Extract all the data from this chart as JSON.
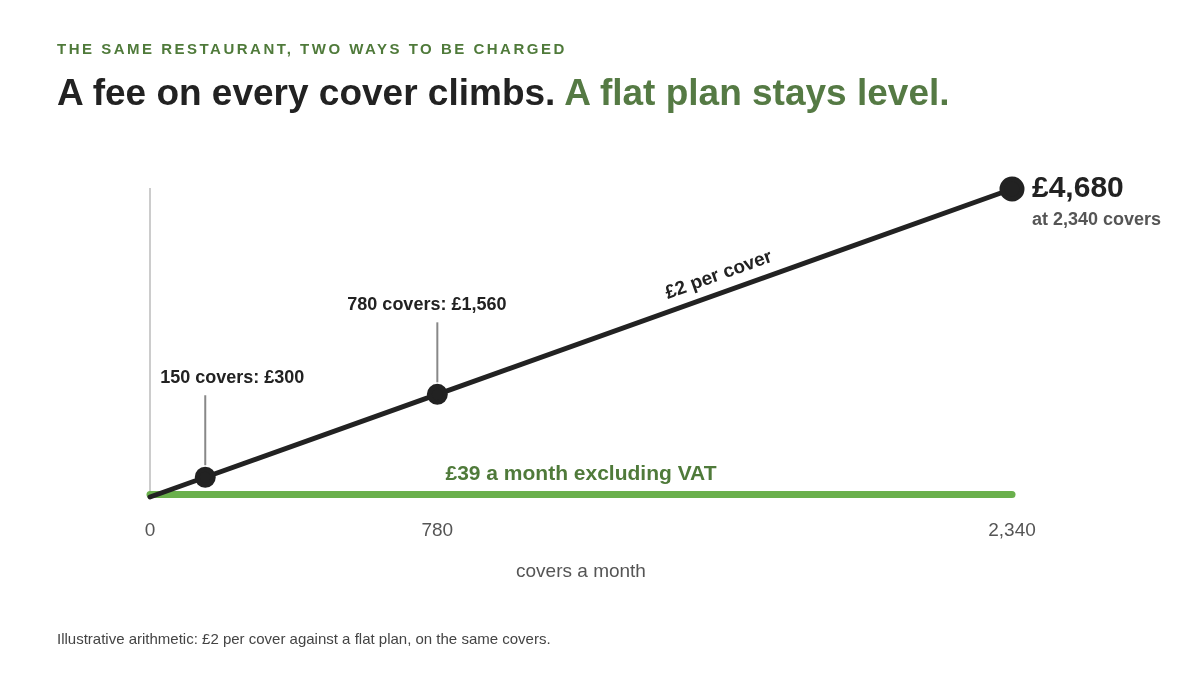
{
  "chart_data": {
    "type": "line",
    "title": "A fee on every cover climbs.",
    "subtitle": "A flat plan stays level.",
    "xlabel": "covers a month",
    "xlim": [
      0,
      2340
    ],
    "xticks": [
      0,
      780,
      {
        "value": 2340,
        "label": "2,340"
      }
    ],
    "ylim": [
      0,
      4680
    ],
    "tick_labels": "x",
    "grid": false,
    "legend": false,
    "marker": "circle",
    "line_style": "solid",
    "series": [
      {
        "color": "#222222",
        "x": [
          0,
          150,
          780,
          2340
        ],
        "values": [
          0,
          300,
          1560,
          4680
        ],
        "value_labels": [
          null,
          "150 covers: £300",
          "780 covers: £1,560",
          "£4,680"
        ]
      },
      {
        "color": "#6ab04c",
        "x": [
          0,
          2340
        ],
        "values": [
          39,
          39
        ],
        "marker": "none"
      }
    ],
    "annotations": [
      "THE SAME RESTAURANT, TWO WAYS TO BE CHARGED",
      "Illustrative arithmetic: £2 per cover against a flat plan, on the same covers.",
      {
        "text": "at 2,340 covers",
        "x": 2340,
        "y": 4680
      },
      {
        "text": "£2 per cover",
        "x": 1560,
        "y": 3120
      },
      {
        "text": "£39 a month excluding VAT",
        "x": 1170,
        "y": 39
      }
    ]
  }
}
